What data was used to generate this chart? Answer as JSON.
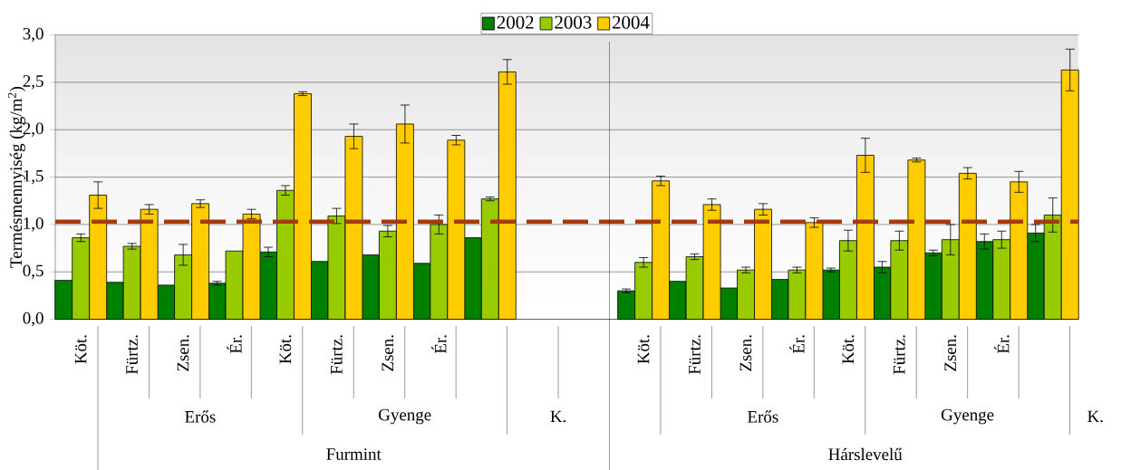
{
  "chart_data": {
    "type": "bar",
    "ylabel": "Termésmennyiség (kg/m$^{2}$)",
    "categories": [
      "Köt.",
      "Fürtz.",
      "Zsen.",
      "Ér.",
      "Köt.",
      "Fürtz.",
      "Zsen.",
      "Ér.",
      null,
      null,
      null,
      "Köt.",
      "Fürtz.",
      "Zsen.",
      "Ér.",
      "Köt.",
      "Fürtz.",
      "Zsen.",
      "Ér.",
      null
    ],
    "annotations": [
      "Erős",
      "Gyenge",
      "K.",
      "Erős",
      "Gyenge",
      "K.",
      "Furmint",
      "Hárslevelű"
    ],
    "series": [
      {
        "name": "2002",
        "color": "#008000",
        "values": [
          0.41,
          0.39,
          0.36,
          0.38,
          0.71,
          0.61,
          0.68,
          0.59,
          0.86,
          null,
          null,
          0.3,
          0.4,
          0.33,
          0.42,
          0.52,
          0.55,
          0.7,
          0.82,
          0.91
        ],
        "errors": [
          null,
          null,
          null,
          0.02,
          0.05,
          null,
          null,
          null,
          null,
          null,
          null,
          0.02,
          null,
          null,
          null,
          0.02,
          0.06,
          0.03,
          0.08,
          0.09
        ]
      },
      {
        "name": "2003",
        "color": "#99cc00",
        "values": [
          0.86,
          0.77,
          0.68,
          0.72,
          1.36,
          1.09,
          0.93,
          1.0,
          1.27,
          null,
          null,
          0.6,
          0.66,
          0.52,
          0.52,
          0.83,
          0.83,
          0.84,
          0.84,
          1.1
        ],
        "errors": [
          0.04,
          0.03,
          0.11,
          null,
          0.05,
          0.08,
          0.06,
          0.1,
          0.02,
          null,
          null,
          0.05,
          0.03,
          0.03,
          0.03,
          0.11,
          0.1,
          0.16,
          0.09,
          0.18
        ]
      },
      {
        "name": "2004",
        "color": "#ffcc00",
        "values": [
          1.31,
          1.16,
          1.22,
          1.11,
          2.38,
          1.93,
          2.06,
          1.89,
          2.61,
          null,
          null,
          1.46,
          1.21,
          1.16,
          1.02,
          1.73,
          1.68,
          1.54,
          1.45,
          2.63
        ],
        "errors": [
          0.14,
          0.05,
          0.04,
          0.05,
          0.02,
          0.13,
          0.2,
          0.05,
          0.13,
          null,
          null,
          0.05,
          0.06,
          0.06,
          0.05,
          0.18,
          0.02,
          0.06,
          0.11,
          0.22
        ]
      }
    ],
    "ylim": [
      0,
      3
    ],
    "yticks": [
      {
        "value": 0,
        "label": "0,0"
      },
      {
        "value": 0.5,
        "label": "0,5"
      },
      {
        "value": 1,
        "label": "1,0"
      },
      {
        "value": 1.5,
        "label": "1,5"
      },
      {
        "value": 2,
        "label": "2,0"
      },
      {
        "value": 2.5,
        "label": "2,5"
      },
      {
        "value": 3,
        "label": "3,0"
      }
    ],
    "ref_lines": [
      {
        "axis": "y",
        "value": 1.03,
        "color": "#a33b0c",
        "line_style": "dashed"
      }
    ],
    "grid": "y",
    "legend": "top"
  }
}
